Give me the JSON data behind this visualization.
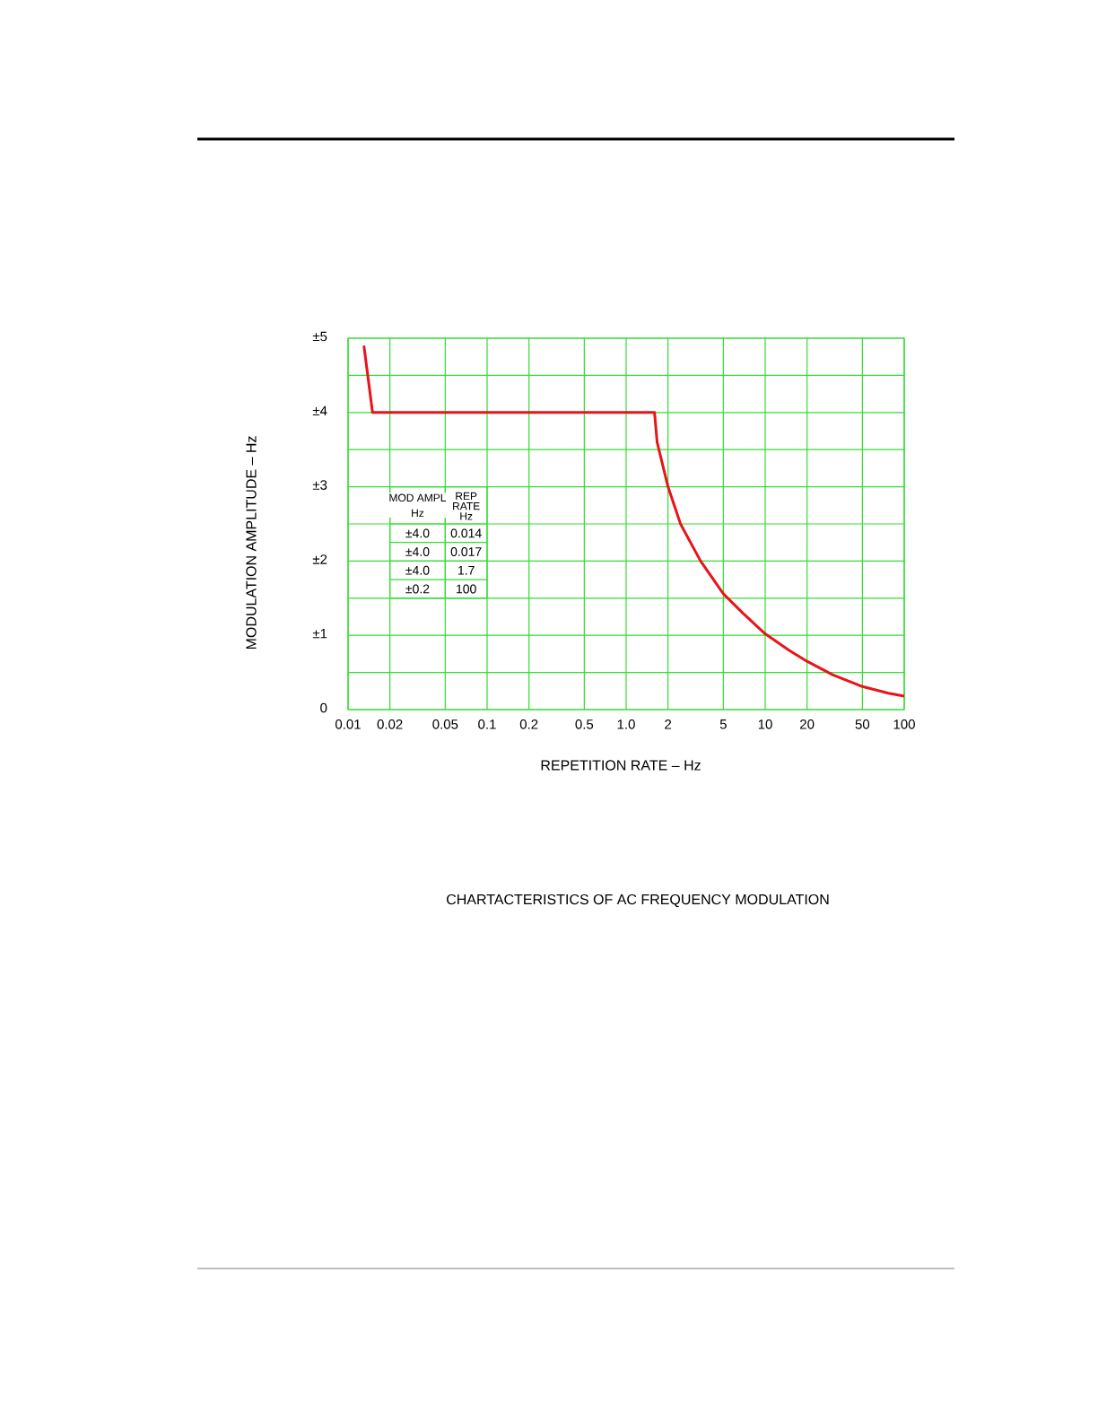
{
  "chart_data": {
    "type": "line",
    "title": "CHARTACTERISTICS OF AC FREQUENCY MODULATION",
    "xlabel": "REPETITION RATE – Hz",
    "ylabel": "MODULATION AMPLITUDE – Hz",
    "log": "x",
    "grid": true,
    "marker": "none",
    "line_style": "solid",
    "xlim": [
      0.01,
      100
    ],
    "xticks": [
      0.01,
      0.02,
      0.05,
      0.1,
      0.2,
      0.5,
      {
        "value": 1,
        "label": "1.0"
      },
      2,
      5,
      10,
      20,
      50,
      100
    ],
    "ylim": [
      0,
      5
    ],
    "yticks": [
      {
        "value": 0,
        "label": "0"
      },
      {
        "value": 0.5,
        "label": null
      },
      {
        "value": 1,
        "label": "±1"
      },
      {
        "value": 1.5,
        "label": null
      },
      {
        "value": 2,
        "label": "±2"
      },
      {
        "value": 2.5,
        "label": null
      },
      {
        "value": 3,
        "label": "±3"
      },
      {
        "value": 3.5,
        "label": null
      },
      {
        "value": 4,
        "label": "±4"
      },
      {
        "value": 4.5,
        "label": null
      },
      {
        "value": 5,
        "label": "±5"
      }
    ],
    "series": [
      {
        "color": "#e8141b",
        "x": [
          0.013,
          0.015,
          1.6,
          1.67,
          2,
          2.46,
          3.43,
          5,
          6.9,
          10,
          14.8,
          20,
          30.5,
          50,
          77,
          100
        ],
        "values": [
          4.9,
          4.0,
          4.0,
          3.6,
          3.0,
          2.5,
          2.0,
          1.56,
          1.3,
          1.02,
          0.8,
          0.65,
          0.47,
          0.31,
          0.22,
          0.18
        ]
      }
    ],
    "annotations": [
      "MOD AMPL",
      "Hz",
      "REP",
      "RATE",
      "Hz",
      "±4.0",
      "0.014",
      "±4.0",
      "0.017",
      "±4.0",
      "1.7",
      "±0.2",
      "100"
    ]
  }
}
